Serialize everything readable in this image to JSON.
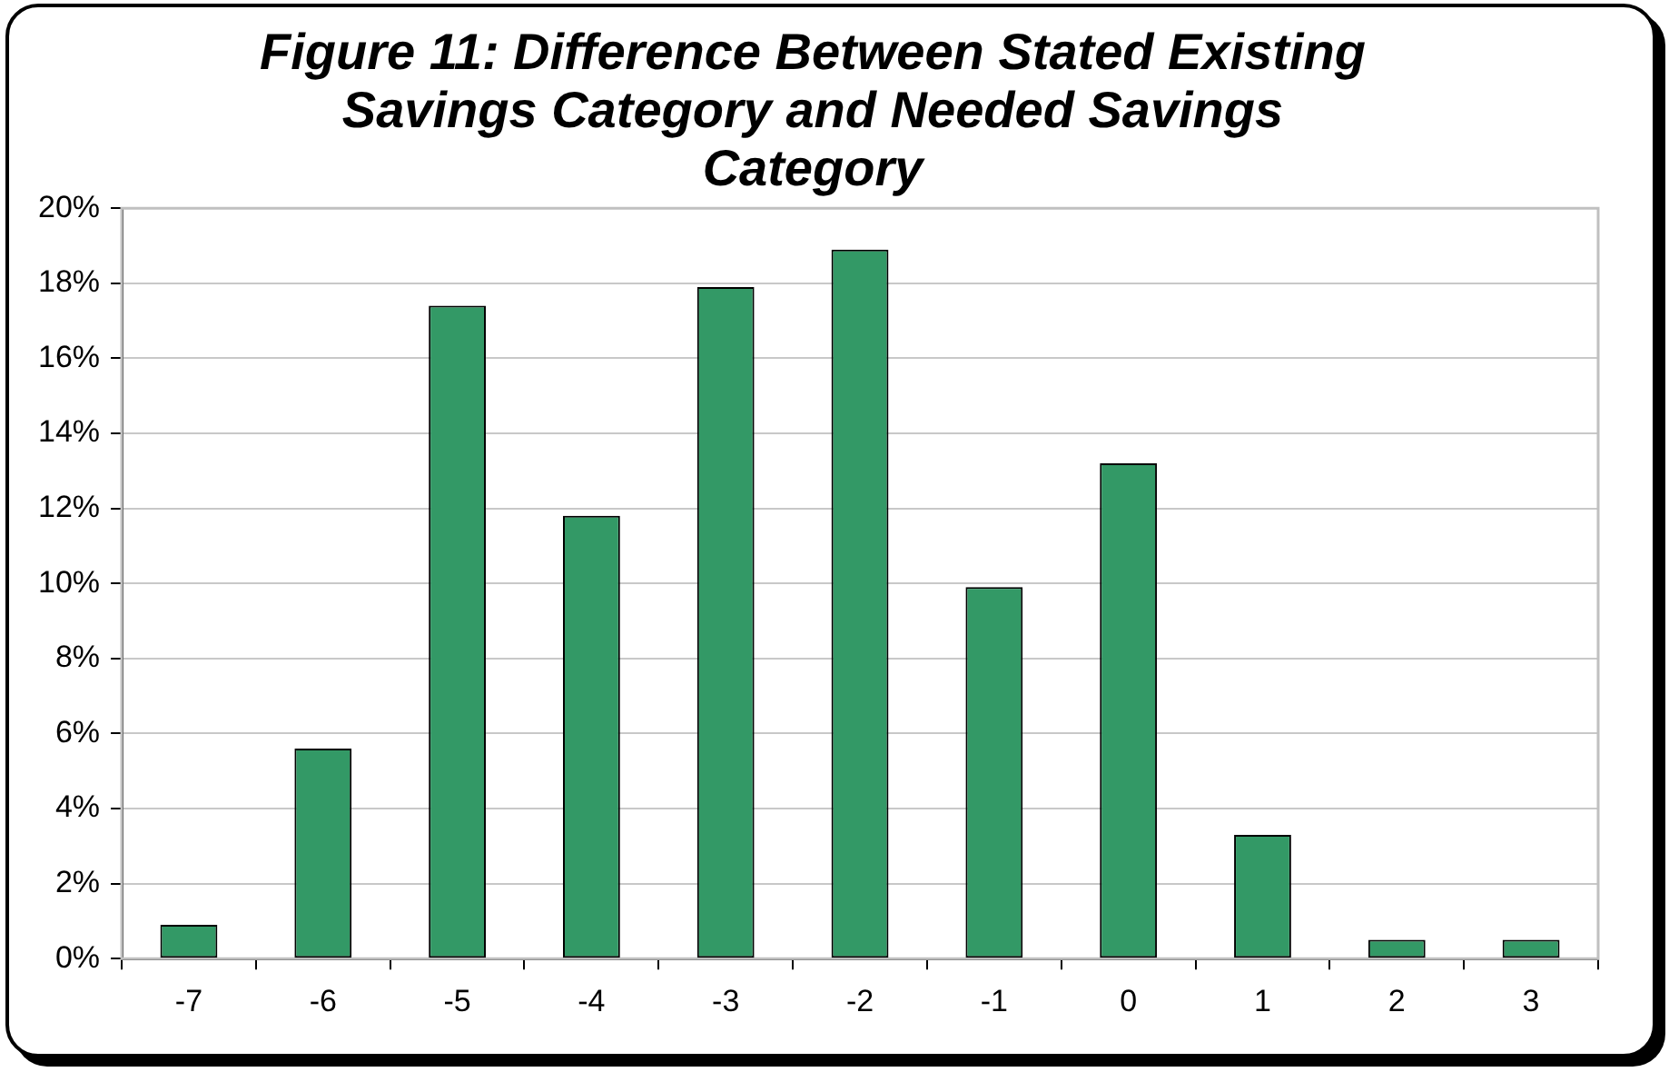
{
  "chart_data": {
    "type": "bar",
    "title": "Figure 11: Difference Between Stated Existing Savings Category and Needed Savings Category",
    "categories": [
      "-7",
      "-6",
      "-5",
      "-4",
      "-3",
      "-2",
      "-1",
      "0",
      "1",
      "2",
      "3"
    ],
    "values": [
      0.9,
      5.6,
      17.4,
      11.8,
      17.9,
      18.9,
      9.9,
      13.2,
      3.3,
      0.5,
      0.5
    ],
    "color": "#339966",
    "ylim": [
      0,
      20
    ],
    "yticks": [
      {
        "value": 0,
        "label": "0%"
      },
      {
        "value": 2,
        "label": "2%"
      },
      {
        "value": 4,
        "label": "4%"
      },
      {
        "value": 6,
        "label": "6%"
      },
      {
        "value": 8,
        "label": "8%"
      },
      {
        "value": 10,
        "label": "10%"
      },
      {
        "value": 12,
        "label": "12%"
      },
      {
        "value": 14,
        "label": "14%"
      },
      {
        "value": 16,
        "label": "16%"
      },
      {
        "value": 18,
        "label": "18%"
      },
      {
        "value": 20,
        "label": "20%"
      }
    ],
    "grid": "y",
    "legend": false
  }
}
